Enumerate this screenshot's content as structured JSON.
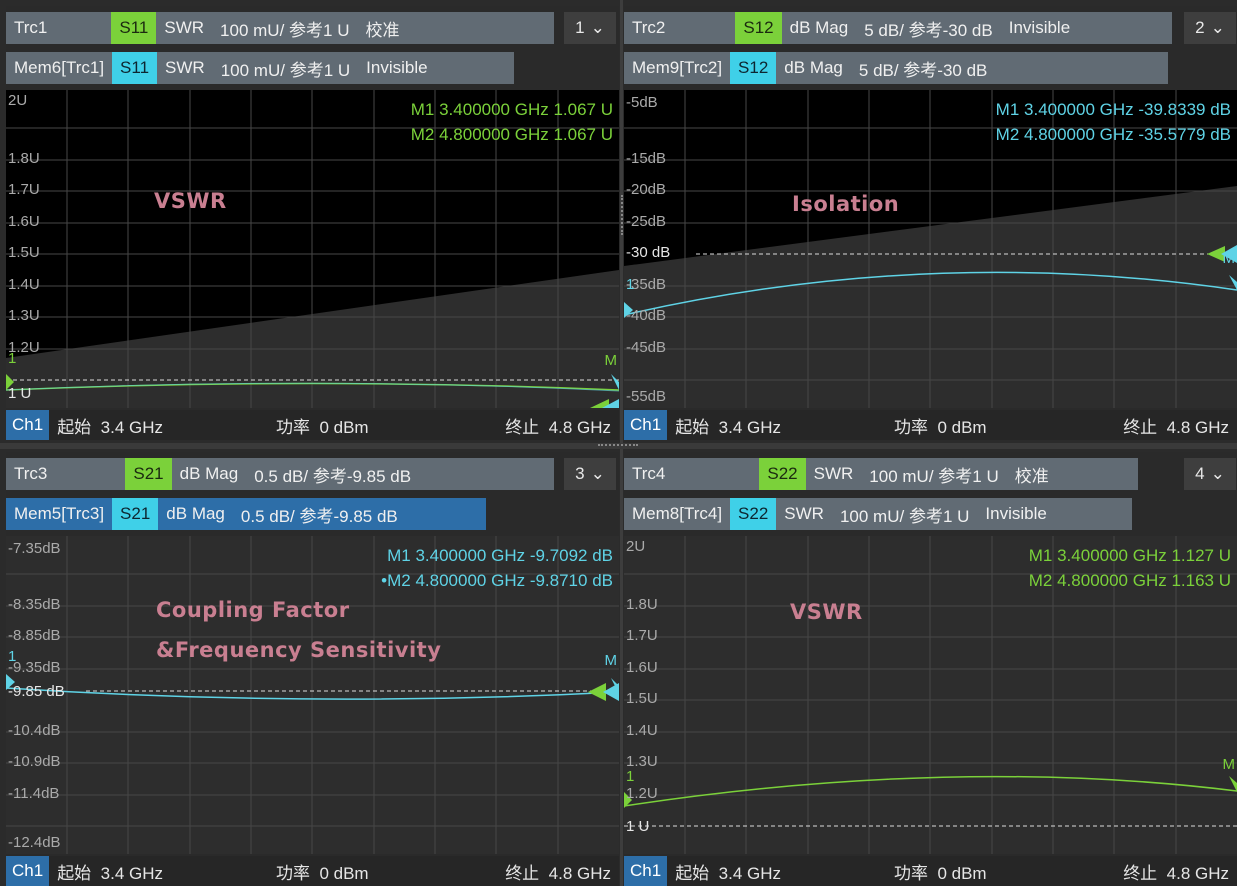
{
  "panes": [
    {
      "id": 1,
      "trace": {
        "name": "Trc1",
        "param": "S11",
        "format": "SWR",
        "scale": "100 mU/ 参考1 U",
        "state": "校准"
      },
      "memory": {
        "name": "Mem6[Trc1]",
        "param": "S11",
        "format": "SWR",
        "scale": "100 mU/ 参考1 U",
        "state": "Invisible"
      },
      "channel_select": "1",
      "y_labels": [
        "2U",
        "1.8U",
        "1.7U",
        "1.6U",
        "1.5U",
        "1.4U",
        "1.3U",
        "1.2U",
        "1 U"
      ],
      "markers": [
        "M1 3.400000 GHz 1.067 U",
        "M2 4.800000 GHz 1.067 U"
      ],
      "annotation": [
        "VSWR"
      ],
      "marker_labels": [
        "1",
        "M"
      ],
      "status": {
        "ch": "Ch1",
        "start_label": "起始",
        "start": "3.4 GHz",
        "power_label": "功率",
        "power": "0 dBm",
        "stop_label": "终止",
        "stop": "4.8 GHz"
      }
    },
    {
      "id": 2,
      "trace": {
        "name": "Trc2",
        "param": "S12",
        "format": "dB Mag",
        "scale": "5 dB/ 参考-30 dB",
        "state": "Invisible"
      },
      "memory": {
        "name": "Mem9[Trc2]",
        "param": "S12",
        "format": "dB Mag",
        "scale": "5 dB/ 参考-30 dB",
        "state": ""
      },
      "channel_select": "2",
      "y_labels": [
        "-5dB",
        "-15dB",
        "-20dB",
        "-25dB",
        "-30 dB",
        "-35dB",
        "-40dB",
        "-45dB",
        "-55dB"
      ],
      "markers": [
        "M1 3.400000 GHz -39.8339 dB",
        "M2 4.800000 GHz -35.5779 dB"
      ],
      "annotation": [
        "Isolation"
      ],
      "marker_labels": [
        "1",
        "M"
      ],
      "status": {
        "ch": "Ch1",
        "start_label": "起始",
        "start": "3.4 GHz",
        "power_label": "功率",
        "power": "0 dBm",
        "stop_label": "终止",
        "stop": "4.8 GHz"
      }
    },
    {
      "id": 3,
      "trace": {
        "name": "Trc3",
        "param": "S21",
        "format": "dB Mag",
        "scale": "0.5 dB/ 参考-9.85 dB",
        "state": ""
      },
      "memory": {
        "name": "Mem5[Trc3]",
        "param": "S21",
        "format": "dB Mag",
        "scale": "0.5 dB/ 参考-9.85 dB",
        "state": ""
      },
      "channel_select": "3",
      "y_labels": [
        "-7.35dB",
        "-8.35dB",
        "-8.85dB",
        "-9.35dB",
        "-9.85 dB",
        "-10.4dB",
        "-10.9dB",
        "-11.4dB",
        "-12.4dB"
      ],
      "markers": [
        "M1 3.400000 GHz -9.7092 dB",
        "•M2 4.800000 GHz -9.8710 dB"
      ],
      "annotation": [
        "Coupling Factor",
        "&Frequency Sensitivity"
      ],
      "marker_labels": [
        "1",
        "M"
      ],
      "status": {
        "ch": "Ch1",
        "start_label": "起始",
        "start": "3.4 GHz",
        "power_label": "功率",
        "power": "0 dBm",
        "stop_label": "终止",
        "stop": "4.8 GHz"
      }
    },
    {
      "id": 4,
      "trace": {
        "name": "Trc4",
        "param": "S22",
        "format": "SWR",
        "scale": "100 mU/ 参考1 U",
        "state": "校准"
      },
      "memory": {
        "name": "Mem8[Trc4]",
        "param": "S22",
        "format": "SWR",
        "scale": "100 mU/ 参考1 U",
        "state": "Invisible"
      },
      "channel_select": "4",
      "y_labels": [
        "2U",
        "1.8U",
        "1.7U",
        "1.6U",
        "1.5U",
        "1.4U",
        "1.3U",
        "1.2U",
        "1 U"
      ],
      "markers": [
        "M1 3.400000 GHz 1.127 U",
        "M2 4.800000 GHz 1.163 U"
      ],
      "annotation": [
        "VSWR"
      ],
      "marker_labels": [
        "1",
        "M"
      ],
      "status": {
        "ch": "Ch1",
        "start_label": "起始",
        "start": "3.4 GHz",
        "power_label": "功率",
        "power": "0 dBm",
        "stop_label": "终止",
        "stop": "4.8 GHz"
      }
    }
  ],
  "colors": {
    "trace_green": "#7bd13a",
    "trace_cyan": "#5fd3e6",
    "annotation_pink": "#c97f91",
    "header_gray": "#616b74",
    "header_blue": "#2d6ea8"
  }
}
